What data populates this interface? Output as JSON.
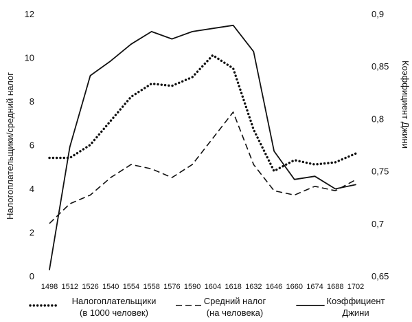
{
  "chart_data": {
    "type": "line",
    "categories": [
      "1498",
      "1512",
      "1526",
      "1540",
      "1554",
      "1558",
      "1576",
      "1590",
      "1604",
      "1618",
      "1632",
      "1646",
      "1660",
      "1674",
      "1688",
      "1702"
    ],
    "series": [
      {
        "name": "Налогоплательщики (в 1000 человек)",
        "legend_lines": [
          "Налогоплательщики",
          "(в 1000 человек)"
        ],
        "axis": "left",
        "style": "dotted",
        "values": [
          5.4,
          5.4,
          6.0,
          7.1,
          8.2,
          8.8,
          8.7,
          9.1,
          10.1,
          9.5,
          6.7,
          4.8,
          5.3,
          5.1,
          5.2,
          5.6
        ]
      },
      {
        "name": "Средний налог (на человека)",
        "legend_lines": [
          "Средний налог",
          "(на человека)"
        ],
        "axis": "left",
        "style": "dashed",
        "values": [
          2.4,
          3.3,
          3.7,
          4.5,
          5.1,
          4.9,
          4.5,
          5.1,
          6.3,
          7.5,
          5.1,
          3.9,
          3.7,
          4.1,
          3.9,
          4.4
        ]
      },
      {
        "name": "Коэффициент Джини",
        "legend_lines": [
          "Коэффициент",
          "Джини"
        ],
        "axis": "right",
        "style": "solid",
        "values": [
          0.656,
          0.773,
          0.841,
          0.855,
          0.871,
          0.883,
          0.876,
          0.883,
          0.886,
          0.889,
          0.864,
          0.769,
          0.742,
          0.745,
          0.733,
          0.737
        ]
      }
    ],
    "y_left": {
      "label": "Налогоплательщики/средний налог",
      "min": 0,
      "max": 12,
      "ticks": [
        0,
        2,
        4,
        6,
        8,
        10,
        12
      ],
      "tick_labels": [
        "0",
        "2",
        "4",
        "6",
        "8",
        "10",
        "12"
      ]
    },
    "y_right": {
      "label": "Коэффициент Джини",
      "min": 0.65,
      "max": 0.9,
      "ticks": [
        0.65,
        0.7,
        0.75,
        0.8,
        0.85,
        0.9
      ],
      "tick_labels": [
        "0,65",
        "0,7",
        "0,75",
        "0,8",
        "0,85",
        "0,9"
      ]
    },
    "title": "",
    "xlabel": "",
    "grid": false,
    "legend_position": "bottom"
  }
}
